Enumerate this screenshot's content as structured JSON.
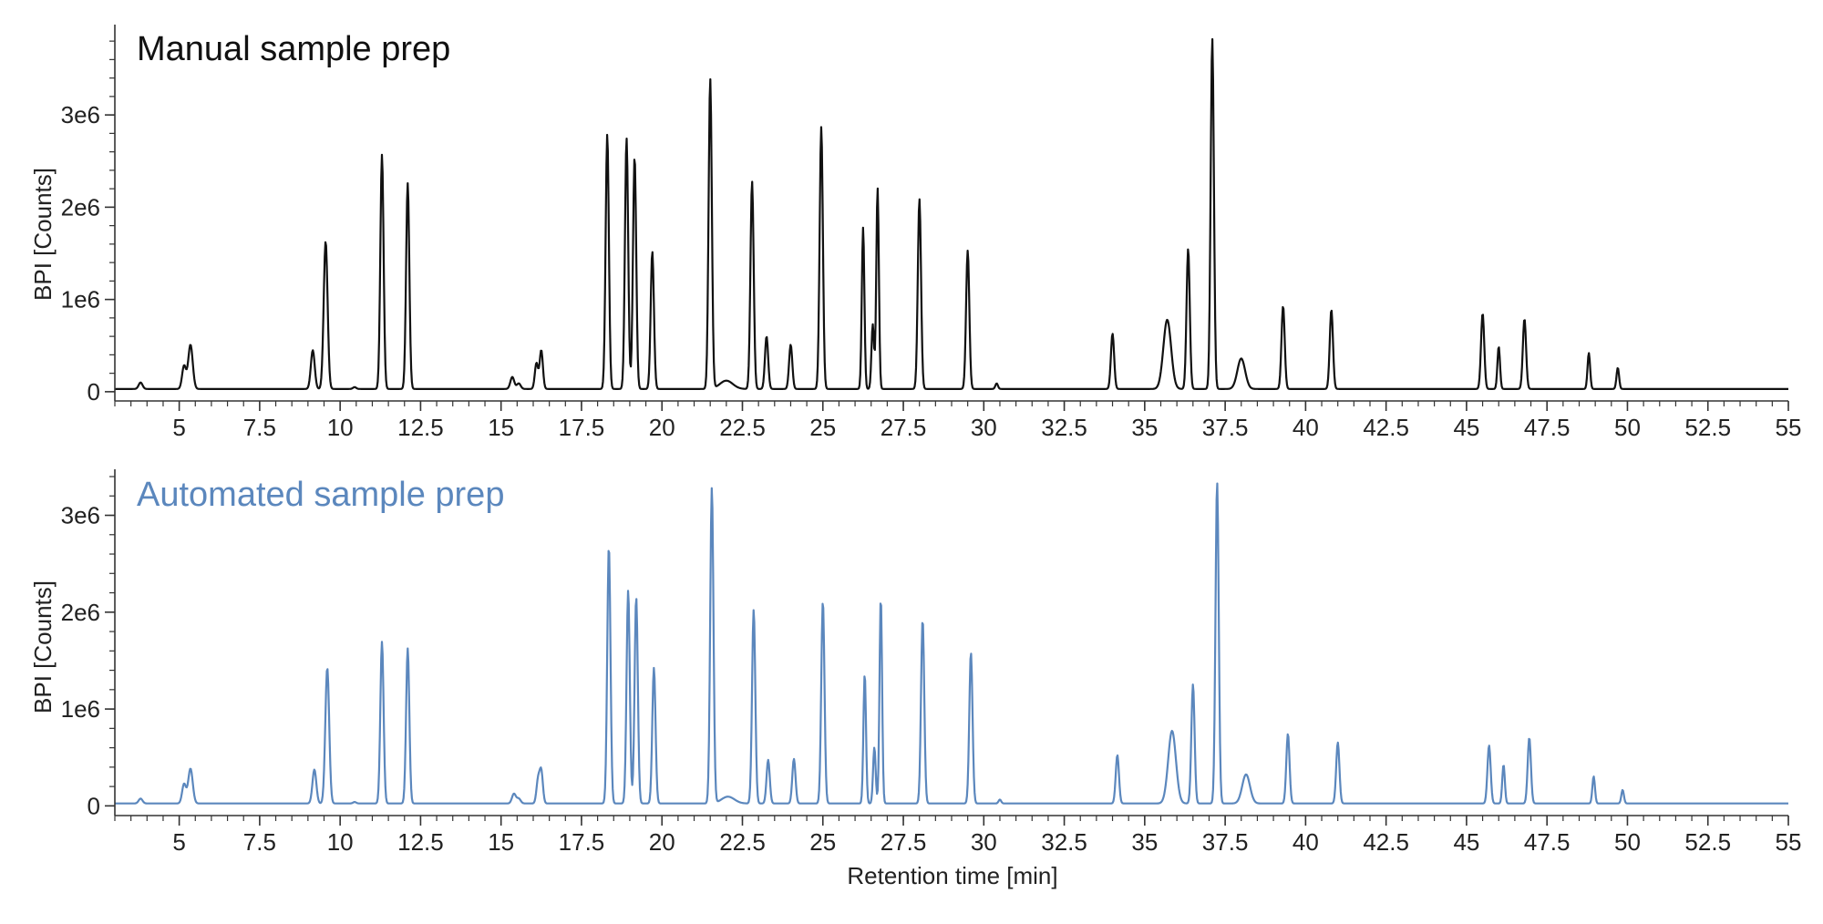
{
  "chart_data": [
    {
      "type": "line",
      "title": "Manual sample prep",
      "xlabel": "",
      "ylabel": "BPI [Counts]",
      "xlim": [
        3,
        55
      ],
      "ylim": [
        -100000,
        3900000
      ],
      "x_ticks": [
        5,
        7.5,
        10,
        12.5,
        15,
        17.5,
        20,
        22.5,
        25,
        27.5,
        30,
        32.5,
        35,
        37.5,
        40,
        42.5,
        45,
        47.5,
        50,
        52.5,
        55
      ],
      "x_tick_labels": [
        "5",
        "7.5",
        "10",
        "12.5",
        "15",
        "17.5",
        "20",
        "22.5",
        "25",
        "27.5",
        "30",
        "32.5",
        "35",
        "37.5",
        "40",
        "42.5",
        "45",
        "47.5",
        "50",
        "52.5",
        "55"
      ],
      "y_ticks": [
        0,
        1000000,
        2000000,
        3000000
      ],
      "y_tick_labels": [
        "0",
        "1e6",
        "2e6",
        "3e6"
      ],
      "grid": false,
      "color": "#111111",
      "baseline": 30000,
      "peaks": [
        {
          "rt": 3.8,
          "height": 70000,
          "width": 0.06
        },
        {
          "rt": 5.15,
          "height": 250000,
          "width": 0.06
        },
        {
          "rt": 5.35,
          "height": 480000,
          "width": 0.07
        },
        {
          "rt": 9.15,
          "height": 420000,
          "width": 0.06
        },
        {
          "rt": 9.55,
          "height": 1600000,
          "width": 0.06
        },
        {
          "rt": 10.45,
          "height": 20000,
          "width": 0.05
        },
        {
          "rt": 11.3,
          "height": 2540000,
          "width": 0.05
        },
        {
          "rt": 12.1,
          "height": 2230000,
          "width": 0.05
        },
        {
          "rt": 15.35,
          "height": 130000,
          "width": 0.06
        },
        {
          "rt": 15.55,
          "height": 60000,
          "width": 0.06
        },
        {
          "rt": 16.1,
          "height": 280000,
          "width": 0.05
        },
        {
          "rt": 16.25,
          "height": 420000,
          "width": 0.05
        },
        {
          "rt": 18.3,
          "height": 2760000,
          "width": 0.05
        },
        {
          "rt": 18.9,
          "height": 2720000,
          "width": 0.05
        },
        {
          "rt": 19.15,
          "height": 2520000,
          "width": 0.05
        },
        {
          "rt": 19.7,
          "height": 1490000,
          "width": 0.05
        },
        {
          "rt": 21.5,
          "height": 3360000,
          "width": 0.05
        },
        {
          "rt": 22.0,
          "height": 90000,
          "width": 0.2
        },
        {
          "rt": 22.8,
          "height": 2250000,
          "width": 0.05
        },
        {
          "rt": 23.25,
          "height": 570000,
          "width": 0.05
        },
        {
          "rt": 24.0,
          "height": 480000,
          "width": 0.05
        },
        {
          "rt": 24.95,
          "height": 2840000,
          "width": 0.05
        },
        {
          "rt": 26.25,
          "height": 1750000,
          "width": 0.04
        },
        {
          "rt": 26.55,
          "height": 700000,
          "width": 0.04
        },
        {
          "rt": 26.7,
          "height": 2180000,
          "width": 0.04
        },
        {
          "rt": 28.0,
          "height": 2060000,
          "width": 0.05
        },
        {
          "rt": 29.5,
          "height": 1500000,
          "width": 0.05
        },
        {
          "rt": 30.4,
          "height": 60000,
          "width": 0.04
        },
        {
          "rt": 34.0,
          "height": 600000,
          "width": 0.05
        },
        {
          "rt": 35.7,
          "height": 750000,
          "width": 0.12
        },
        {
          "rt": 36.35,
          "height": 1520000,
          "width": 0.05
        },
        {
          "rt": 37.1,
          "height": 3800000,
          "width": 0.05
        },
        {
          "rt": 38.0,
          "height": 330000,
          "width": 0.12
        },
        {
          "rt": 39.3,
          "height": 900000,
          "width": 0.05
        },
        {
          "rt": 40.8,
          "height": 860000,
          "width": 0.05
        },
        {
          "rt": 45.5,
          "height": 820000,
          "width": 0.05
        },
        {
          "rt": 46.0,
          "height": 460000,
          "width": 0.04
        },
        {
          "rt": 46.8,
          "height": 760000,
          "width": 0.05
        },
        {
          "rt": 48.8,
          "height": 390000,
          "width": 0.04
        },
        {
          "rt": 49.7,
          "height": 230000,
          "width": 0.04
        }
      ]
    },
    {
      "type": "line",
      "title": "Automated sample prep",
      "xlabel": "Retention time [min]",
      "ylabel": "BPI [Counts]",
      "xlim": [
        3,
        55
      ],
      "ylim": [
        -100000,
        3400000
      ],
      "x_ticks": [
        5,
        7.5,
        10,
        12.5,
        15,
        17.5,
        20,
        22.5,
        25,
        27.5,
        30,
        32.5,
        35,
        37.5,
        40,
        42.5,
        45,
        47.5,
        50,
        52.5,
        55
      ],
      "x_tick_labels": [
        "5",
        "7.5",
        "10",
        "12.5",
        "15",
        "17.5",
        "20",
        "22.5",
        "25",
        "27.5",
        "30",
        "32.5",
        "35",
        "37.5",
        "40",
        "42.5",
        "45",
        "47.5",
        "50",
        "52.5",
        "55"
      ],
      "y_ticks": [
        0,
        1000000,
        2000000,
        3000000
      ],
      "y_tick_labels": [
        "0",
        "1e6",
        "2e6",
        "3e6"
      ],
      "grid": false,
      "color": "#5b87bd",
      "baseline": 25000,
      "peaks": [
        {
          "rt": 3.8,
          "height": 50000,
          "width": 0.06
        },
        {
          "rt": 5.15,
          "height": 200000,
          "width": 0.06
        },
        {
          "rt": 5.35,
          "height": 360000,
          "width": 0.07
        },
        {
          "rt": 9.2,
          "height": 350000,
          "width": 0.06
        },
        {
          "rt": 9.6,
          "height": 1400000,
          "width": 0.06
        },
        {
          "rt": 10.45,
          "height": 15000,
          "width": 0.05
        },
        {
          "rt": 11.3,
          "height": 1670000,
          "width": 0.05
        },
        {
          "rt": 12.1,
          "height": 1600000,
          "width": 0.05
        },
        {
          "rt": 15.4,
          "height": 100000,
          "width": 0.06
        },
        {
          "rt": 15.55,
          "height": 50000,
          "width": 0.06
        },
        {
          "rt": 16.15,
          "height": 240000,
          "width": 0.05
        },
        {
          "rt": 16.25,
          "height": 330000,
          "width": 0.05
        },
        {
          "rt": 18.35,
          "height": 2660000,
          "width": 0.05
        },
        {
          "rt": 18.95,
          "height": 2200000,
          "width": 0.05
        },
        {
          "rt": 19.2,
          "height": 2130000,
          "width": 0.05
        },
        {
          "rt": 19.75,
          "height": 1400000,
          "width": 0.05
        },
        {
          "rt": 21.55,
          "height": 3260000,
          "width": 0.05
        },
        {
          "rt": 22.05,
          "height": 70000,
          "width": 0.2
        },
        {
          "rt": 22.85,
          "height": 2000000,
          "width": 0.05
        },
        {
          "rt": 23.3,
          "height": 450000,
          "width": 0.05
        },
        {
          "rt": 24.1,
          "height": 460000,
          "width": 0.05
        },
        {
          "rt": 25.0,
          "height": 2090000,
          "width": 0.05
        },
        {
          "rt": 26.3,
          "height": 1340000,
          "width": 0.04
        },
        {
          "rt": 26.6,
          "height": 580000,
          "width": 0.04
        },
        {
          "rt": 26.8,
          "height": 2130000,
          "width": 0.04
        },
        {
          "rt": 28.1,
          "height": 1900000,
          "width": 0.05
        },
        {
          "rt": 29.6,
          "height": 1560000,
          "width": 0.05
        },
        {
          "rt": 30.5,
          "height": 40000,
          "width": 0.04
        },
        {
          "rt": 34.15,
          "height": 500000,
          "width": 0.05
        },
        {
          "rt": 35.85,
          "height": 750000,
          "width": 0.12
        },
        {
          "rt": 36.5,
          "height": 1230000,
          "width": 0.05
        },
        {
          "rt": 37.25,
          "height": 3320000,
          "width": 0.05
        },
        {
          "rt": 38.15,
          "height": 300000,
          "width": 0.12
        },
        {
          "rt": 39.45,
          "height": 720000,
          "width": 0.05
        },
        {
          "rt": 41.0,
          "height": 630000,
          "width": 0.05
        },
        {
          "rt": 45.7,
          "height": 600000,
          "width": 0.05
        },
        {
          "rt": 46.15,
          "height": 400000,
          "width": 0.04
        },
        {
          "rt": 46.95,
          "height": 680000,
          "width": 0.05
        },
        {
          "rt": 48.95,
          "height": 280000,
          "width": 0.04
        },
        {
          "rt": 49.85,
          "height": 140000,
          "width": 0.04
        }
      ]
    }
  ]
}
